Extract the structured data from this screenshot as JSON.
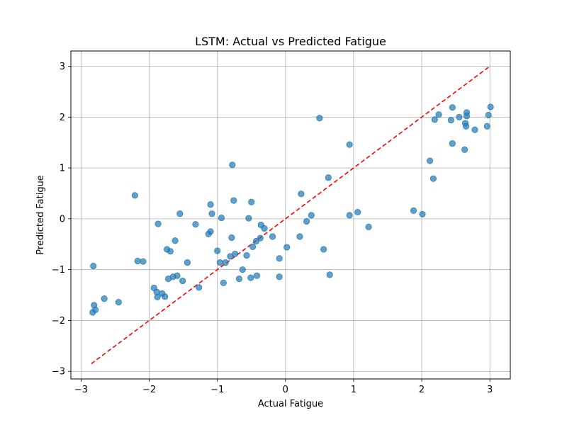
{
  "chart_data": {
    "type": "scatter",
    "title": "LSTM: Actual vs Predicted Fatigue",
    "xlabel": "Actual Fatigue",
    "ylabel": "Predicted Fatigue",
    "xlim": [
      -3.15,
      3.3
    ],
    "ylim": [
      -3.15,
      3.3
    ],
    "xticks": [
      -3,
      -2,
      -1,
      0,
      1,
      2,
      3
    ],
    "yticks": [
      -3,
      -2,
      -1,
      0,
      1,
      2,
      3
    ],
    "tick_labels_x": [
      "−3",
      "−2",
      "−1",
      "0",
      "1",
      "2",
      "3"
    ],
    "tick_labels_y": [
      "−3",
      "−2",
      "−1",
      "0",
      "1",
      "2",
      "3"
    ],
    "grid": true,
    "point_color": "#1f77b4",
    "point_alpha": 0.7,
    "reference_line": {
      "x": [
        -2.85,
        3.0
      ],
      "y": [
        -2.85,
        3.0
      ],
      "color": "#ff0000",
      "style": "dashed"
    },
    "points": [
      {
        "x": -2.82,
        "y": -0.93
      },
      {
        "x": -2.83,
        "y": -1.84
      },
      {
        "x": -2.79,
        "y": -1.79
      },
      {
        "x": -2.81,
        "y": -1.7
      },
      {
        "x": -2.66,
        "y": -1.57
      },
      {
        "x": -2.45,
        "y": -1.64
      },
      {
        "x": -2.21,
        "y": 0.46
      },
      {
        "x": -2.17,
        "y": -0.83
      },
      {
        "x": -2.09,
        "y": -0.84
      },
      {
        "x": -1.93,
        "y": -1.36
      },
      {
        "x": -1.89,
        "y": -1.44
      },
      {
        "x": -1.88,
        "y": -1.54
      },
      {
        "x": -1.87,
        "y": -0.1
      },
      {
        "x": -1.81,
        "y": -1.47
      },
      {
        "x": -1.77,
        "y": -1.53
      },
      {
        "x": -1.74,
        "y": -0.6
      },
      {
        "x": -1.72,
        "y": -1.18
      },
      {
        "x": -1.69,
        "y": -0.64
      },
      {
        "x": -1.65,
        "y": -1.14
      },
      {
        "x": -1.62,
        "y": -0.43
      },
      {
        "x": -1.59,
        "y": -1.12
      },
      {
        "x": -1.55,
        "y": 0.1
      },
      {
        "x": -1.51,
        "y": -1.22
      },
      {
        "x": -1.44,
        "y": -0.86
      },
      {
        "x": -1.32,
        "y": -0.11
      },
      {
        "x": -1.27,
        "y": -1.35
      },
      {
        "x": -1.13,
        "y": -0.3
      },
      {
        "x": -1.1,
        "y": 0.28
      },
      {
        "x": -1.1,
        "y": -0.25
      },
      {
        "x": -1.08,
        "y": 0.1
      },
      {
        "x": -1.0,
        "y": -0.63
      },
      {
        "x": -0.96,
        "y": -0.86
      },
      {
        "x": -0.94,
        "y": 0.02
      },
      {
        "x": -0.91,
        "y": -1.26
      },
      {
        "x": -0.88,
        "y": -0.86
      },
      {
        "x": -0.81,
        "y": -0.74
      },
      {
        "x": -0.79,
        "y": -0.37
      },
      {
        "x": -0.78,
        "y": 1.06
      },
      {
        "x": -0.76,
        "y": 0.36
      },
      {
        "x": -0.74,
        "y": -0.69
      },
      {
        "x": -0.68,
        "y": -1.18
      },
      {
        "x": -0.63,
        "y": -1.0
      },
      {
        "x": -0.57,
        "y": -0.72
      },
      {
        "x": -0.54,
        "y": 0.01
      },
      {
        "x": -0.51,
        "y": -1.16
      },
      {
        "x": -0.5,
        "y": 0.33
      },
      {
        "x": -0.48,
        "y": -0.55
      },
      {
        "x": -0.43,
        "y": -0.44
      },
      {
        "x": -0.42,
        "y": -1.12
      },
      {
        "x": -0.37,
        "y": -0.38
      },
      {
        "x": -0.36,
        "y": -0.12
      },
      {
        "x": -0.31,
        "y": -0.19
      },
      {
        "x": -0.19,
        "y": -0.35
      },
      {
        "x": -0.09,
        "y": -0.78
      },
      {
        "x": -0.09,
        "y": -1.14
      },
      {
        "x": 0.02,
        "y": -0.56
      },
      {
        "x": 0.21,
        "y": -0.35
      },
      {
        "x": 0.23,
        "y": 0.49
      },
      {
        "x": 0.31,
        "y": -0.05
      },
      {
        "x": 0.38,
        "y": 0.07
      },
      {
        "x": 0.5,
        "y": 1.98
      },
      {
        "x": 0.56,
        "y": -0.6
      },
      {
        "x": 0.63,
        "y": 0.81
      },
      {
        "x": 0.65,
        "y": -1.1
      },
      {
        "x": 0.94,
        "y": 1.46
      },
      {
        "x": 0.94,
        "y": 0.07
      },
      {
        "x": 1.06,
        "y": 0.13
      },
      {
        "x": 1.22,
        "y": -0.16
      },
      {
        "x": 1.88,
        "y": 0.16
      },
      {
        "x": 2.01,
        "y": 0.09
      },
      {
        "x": 2.12,
        "y": 1.14
      },
      {
        "x": 2.17,
        "y": 0.79
      },
      {
        "x": 2.19,
        "y": 1.95
      },
      {
        "x": 2.25,
        "y": 2.05
      },
      {
        "x": 2.43,
        "y": 1.94
      },
      {
        "x": 2.45,
        "y": 2.19
      },
      {
        "x": 2.45,
        "y": 1.48
      },
      {
        "x": 2.55,
        "y": 2.0
      },
      {
        "x": 2.63,
        "y": 1.36
      },
      {
        "x": 2.64,
        "y": 1.88
      },
      {
        "x": 2.65,
        "y": 1.82
      },
      {
        "x": 2.66,
        "y": 2.02
      },
      {
        "x": 2.66,
        "y": 2.09
      },
      {
        "x": 2.78,
        "y": 1.75
      },
      {
        "x": 2.96,
        "y": 1.82
      },
      {
        "x": 2.98,
        "y": 2.04
      },
      {
        "x": 3.01,
        "y": 2.2
      }
    ]
  }
}
